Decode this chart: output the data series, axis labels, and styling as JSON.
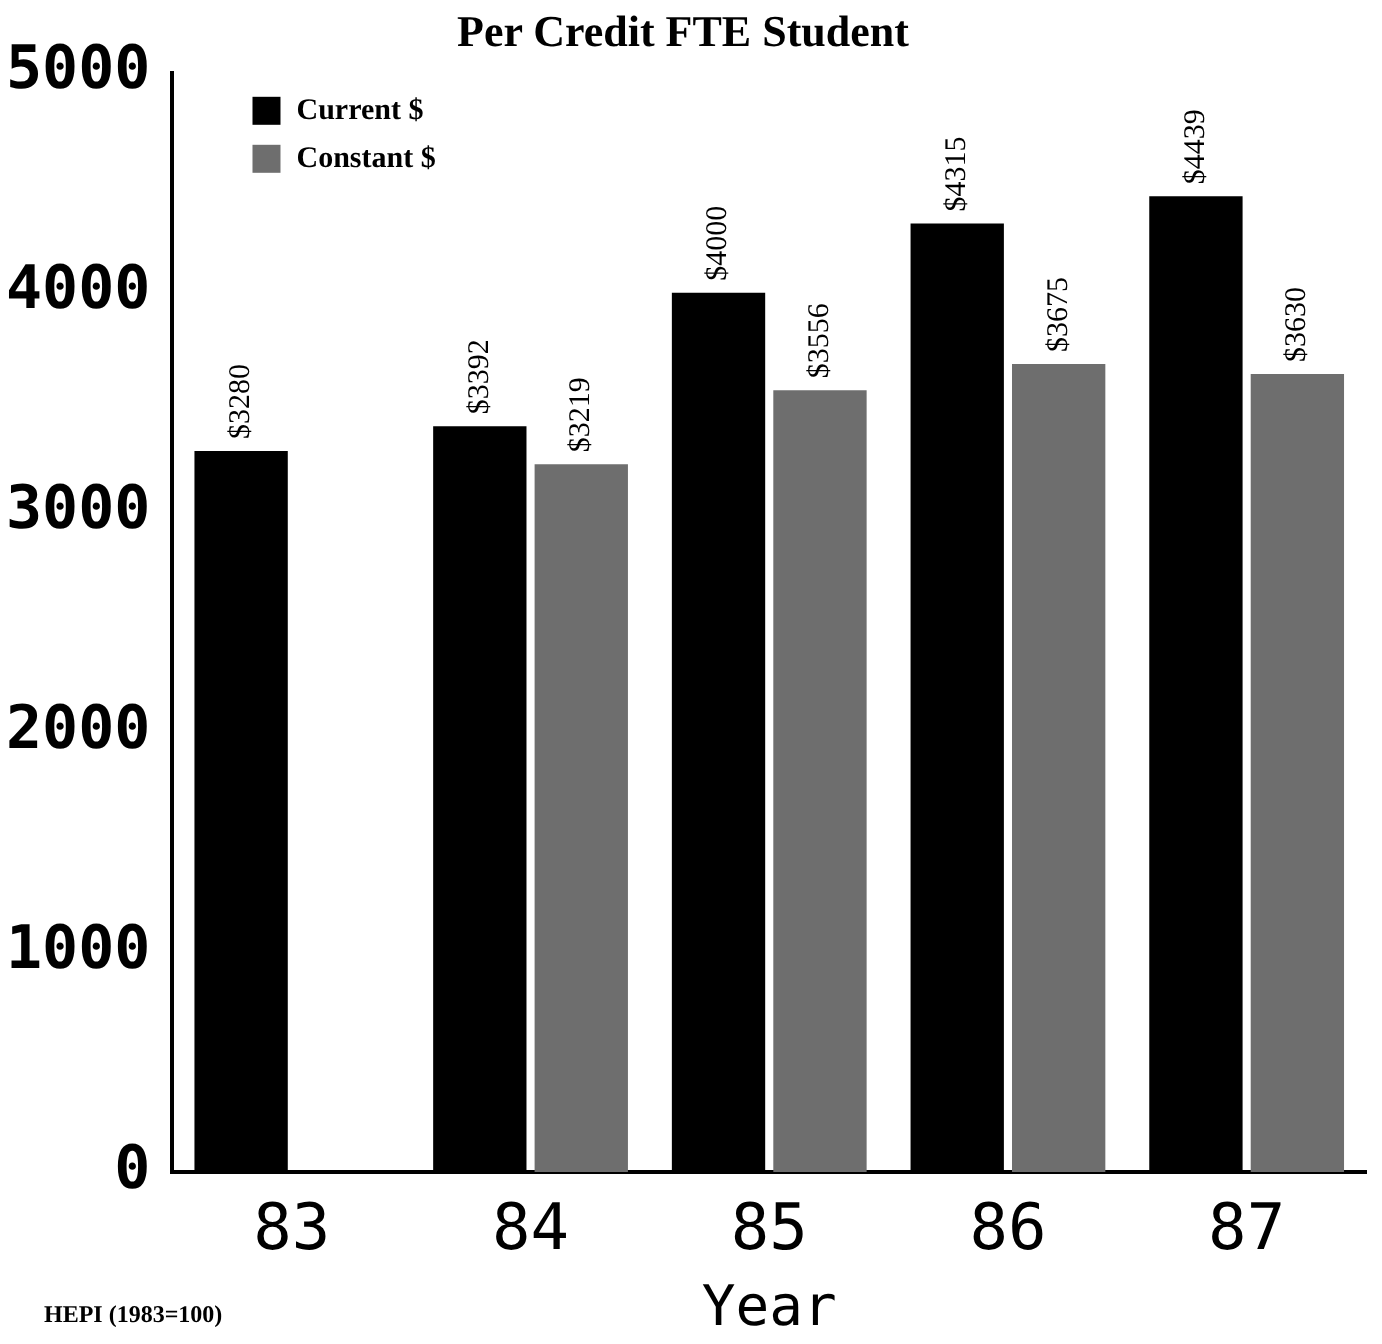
{
  "chart_data": {
    "type": "bar",
    "title": "Per Credit FTE Student",
    "xlabel": "Year",
    "annotations": [
      "HEPI (1983=100)"
    ],
    "categories": [
      "83",
      "84",
      "85",
      "86",
      "87"
    ],
    "series": [
      {
        "name": "Current $",
        "color": "#000000",
        "values": [
          3280,
          3392,
          4000,
          4315,
          4439
        ],
        "value_labels": [
          "$3280",
          "$3392",
          "$4000",
          "$4315",
          "$4439"
        ]
      },
      {
        "name": "Constant $",
        "color": "#6e6e6e",
        "values": [
          null,
          3219,
          3556,
          3675,
          3630
        ],
        "value_labels": [
          null,
          "$3219",
          "$3556",
          "$3675",
          "$3630"
        ]
      }
    ],
    "ylim": [
      0,
      5000
    ],
    "yticks": [
      0,
      1000,
      2000,
      3000,
      4000,
      5000
    ],
    "grid": false,
    "legend": "top left"
  }
}
